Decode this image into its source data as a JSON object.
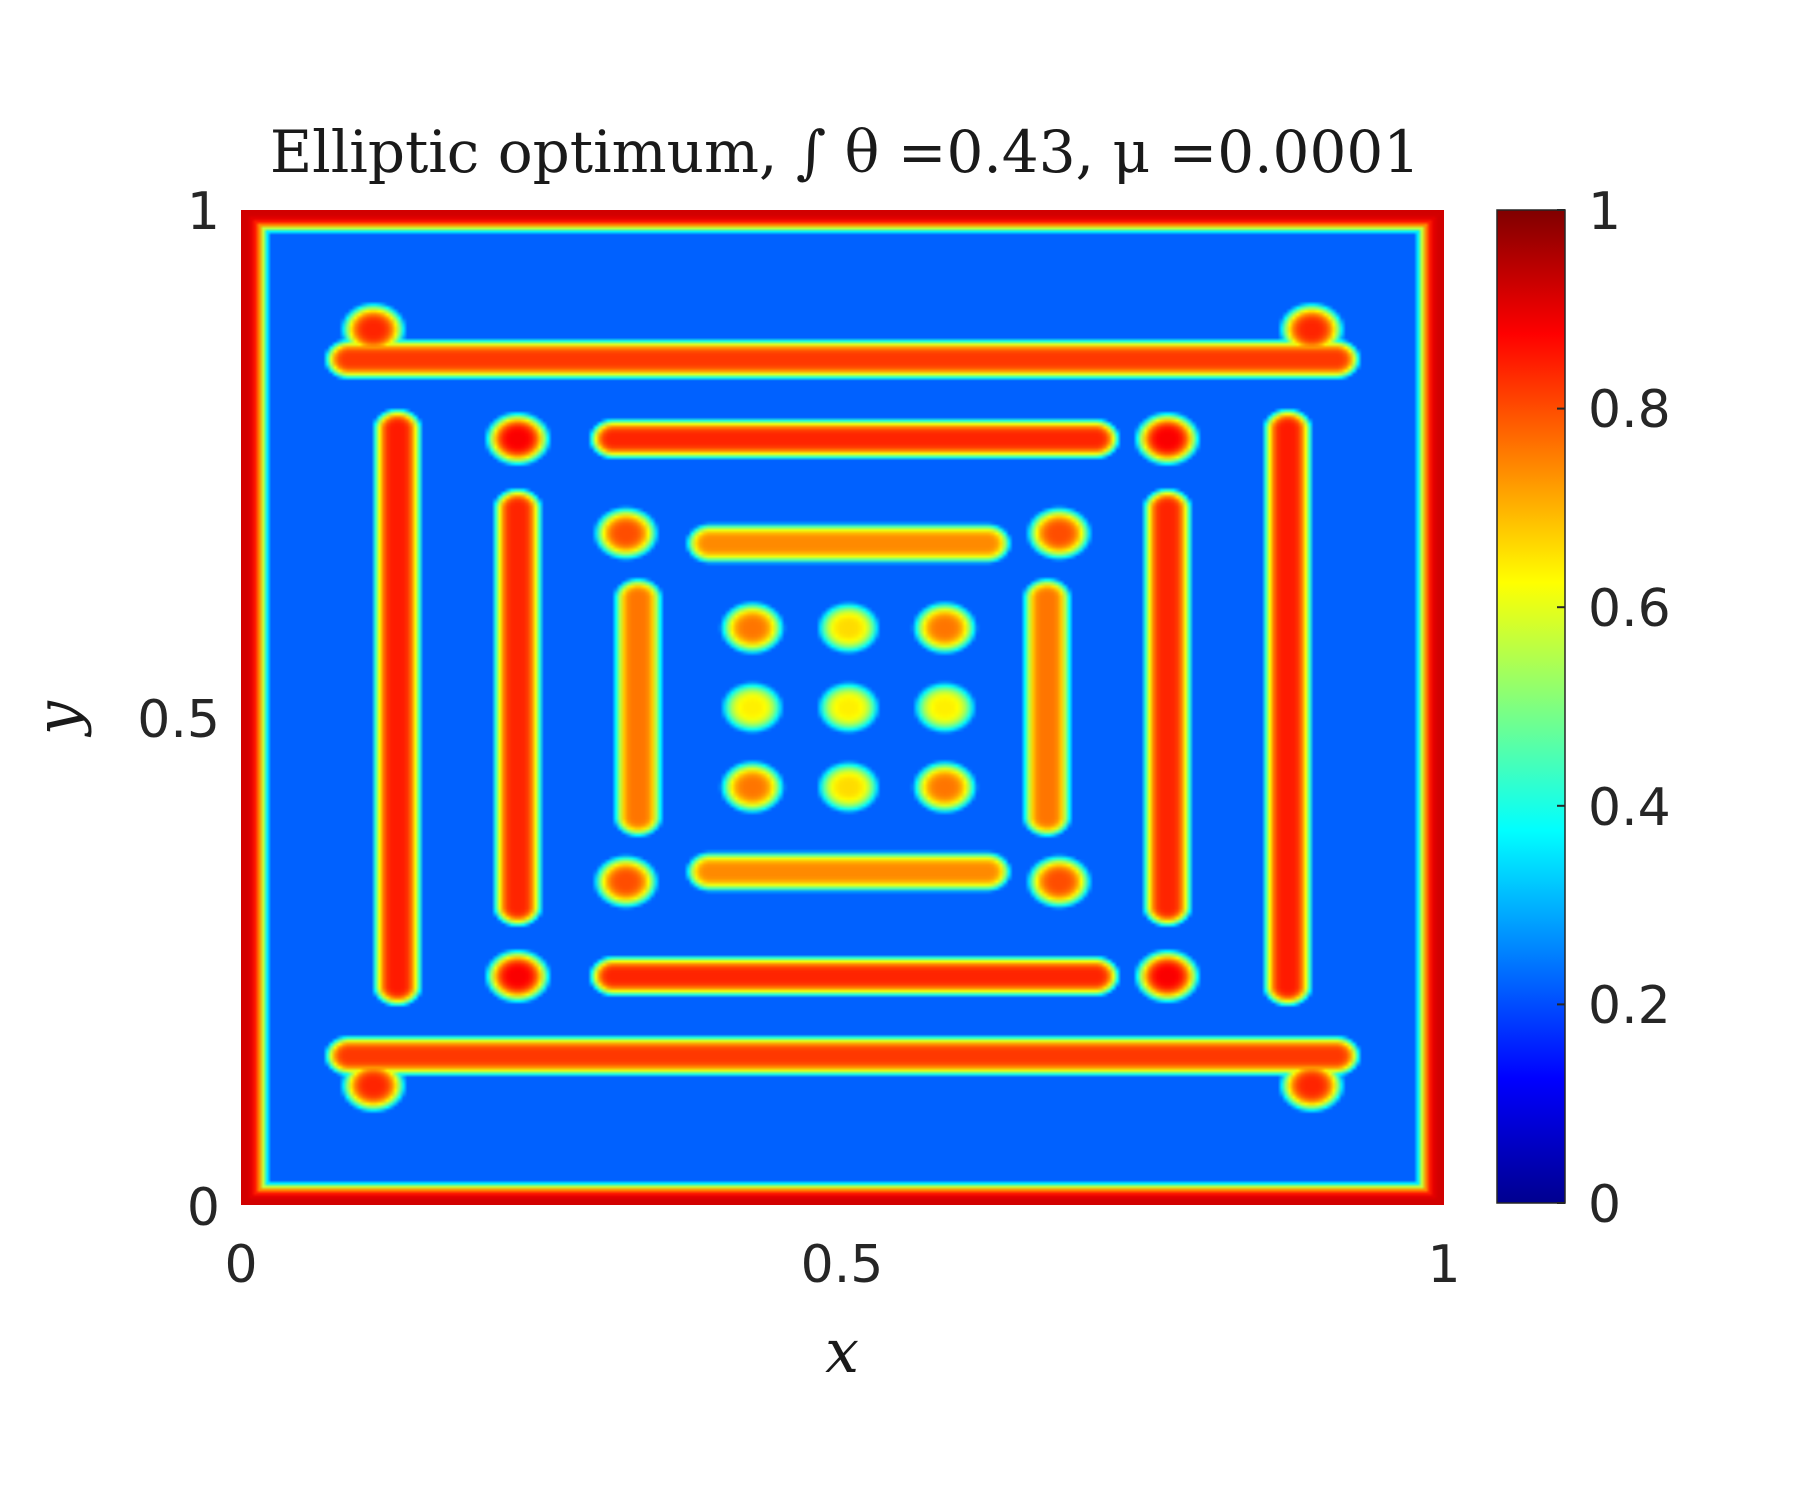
{
  "chart_data": {
    "type": "heatmap",
    "title": "Elliptic optimum, ∫ θ =0.43, μ =0.0001",
    "xlabel": "x",
    "ylabel": "y",
    "xlim": [
      0,
      1
    ],
    "ylim": [
      0,
      1
    ],
    "x_ticks": [
      "0",
      "0.5",
      "1"
    ],
    "y_ticks": [
      "0",
      "0.5",
      "1"
    ],
    "colormap": "jet",
    "colorbar": {
      "range": [
        0,
        1
      ],
      "ticks": [
        "0",
        "0.2",
        "0.4",
        "0.6",
        "0.8",
        "1"
      ]
    },
    "grid": false,
    "field": {
      "background_value": 0.22,
      "border_frame_value": 0.92,
      "horizontal_bars": [
        {
          "x0": 0.09,
          "x1": 0.91,
          "y": 0.15,
          "value": 0.82
        },
        {
          "x0": 0.09,
          "x1": 0.91,
          "y": 0.85,
          "value": 0.82
        },
        {
          "x0": 0.31,
          "x1": 0.71,
          "y": 0.23,
          "value": 0.84
        },
        {
          "x0": 0.31,
          "x1": 0.71,
          "y": 0.77,
          "value": 0.84
        },
        {
          "x0": 0.39,
          "x1": 0.62,
          "y": 0.335,
          "value": 0.74
        },
        {
          "x0": 0.39,
          "x1": 0.62,
          "y": 0.665,
          "value": 0.74
        }
      ],
      "vertical_bars": [
        {
          "x": 0.13,
          "y0": 0.22,
          "y1": 0.78,
          "value": 0.85
        },
        {
          "x": 0.87,
          "y0": 0.22,
          "y1": 0.78,
          "value": 0.85
        },
        {
          "x": 0.23,
          "y0": 0.3,
          "y1": 0.7,
          "value": 0.84
        },
        {
          "x": 0.77,
          "y0": 0.3,
          "y1": 0.7,
          "value": 0.84
        },
        {
          "x": 0.33,
          "y0": 0.39,
          "y1": 0.61,
          "value": 0.76
        },
        {
          "x": 0.67,
          "y0": 0.39,
          "y1": 0.61,
          "value": 0.76
        }
      ],
      "spots": [
        {
          "x": 0.11,
          "y": 0.12,
          "value": 0.84
        },
        {
          "x": 0.89,
          "y": 0.12,
          "value": 0.84
        },
        {
          "x": 0.11,
          "y": 0.88,
          "value": 0.84
        },
        {
          "x": 0.89,
          "y": 0.88,
          "value": 0.84
        },
        {
          "x": 0.23,
          "y": 0.23,
          "value": 0.88
        },
        {
          "x": 0.77,
          "y": 0.23,
          "value": 0.88
        },
        {
          "x": 0.23,
          "y": 0.77,
          "value": 0.88
        },
        {
          "x": 0.77,
          "y": 0.77,
          "value": 0.88
        },
        {
          "x": 0.32,
          "y": 0.325,
          "value": 0.8
        },
        {
          "x": 0.68,
          "y": 0.325,
          "value": 0.8
        },
        {
          "x": 0.32,
          "y": 0.675,
          "value": 0.8
        },
        {
          "x": 0.68,
          "y": 0.675,
          "value": 0.8
        },
        {
          "x": 0.425,
          "y": 0.42,
          "value": 0.76
        },
        {
          "x": 0.505,
          "y": 0.42,
          "value": 0.66
        },
        {
          "x": 0.585,
          "y": 0.42,
          "value": 0.76
        },
        {
          "x": 0.425,
          "y": 0.5,
          "value": 0.64
        },
        {
          "x": 0.505,
          "y": 0.5,
          "value": 0.64
        },
        {
          "x": 0.585,
          "y": 0.5,
          "value": 0.64
        },
        {
          "x": 0.425,
          "y": 0.58,
          "value": 0.76
        },
        {
          "x": 0.505,
          "y": 0.58,
          "value": 0.66
        },
        {
          "x": 0.585,
          "y": 0.58,
          "value": 0.76
        }
      ]
    }
  }
}
